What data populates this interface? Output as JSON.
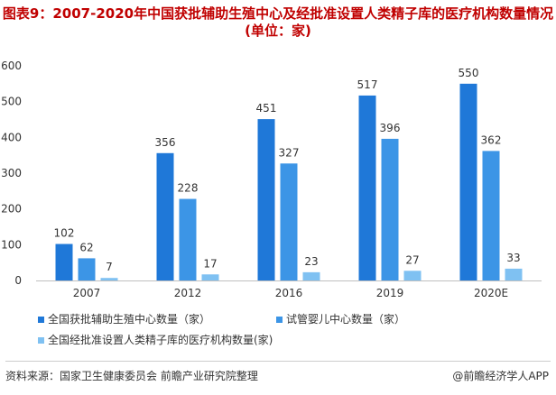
{
  "title": "图表9：2007-2020年中国获批辅助生殖中心及经批准设置人类精子库的医疗机构数量情况(单位：家)",
  "footer": {
    "source": "资料来源：国家卫生健康委员会 前瞻产业研究院整理",
    "brand": "@前瞻经济学人APP"
  },
  "chart_data": {
    "type": "bar",
    "categories": [
      "2007",
      "2012",
      "2016",
      "2019",
      "2020E"
    ],
    "ylim": [
      0,
      600
    ],
    "yticks": [
      0,
      100,
      200,
      300,
      400,
      500,
      600
    ],
    "series": [
      {
        "name": "全国获批辅助生殖中心数量（家）",
        "values": [
          102,
          356,
          451,
          517,
          550
        ],
        "color": "#1f78d8"
      },
      {
        "name": "试管婴儿中心数量（家）",
        "values": [
          62,
          228,
          327,
          396,
          362
        ],
        "color": "#3c95e6"
      },
      {
        "name": "全国经批准设置人类精子库的医疗机构数量(家)",
        "values": [
          7,
          17,
          23,
          27,
          33
        ],
        "color": "#7fc1f2"
      }
    ]
  }
}
